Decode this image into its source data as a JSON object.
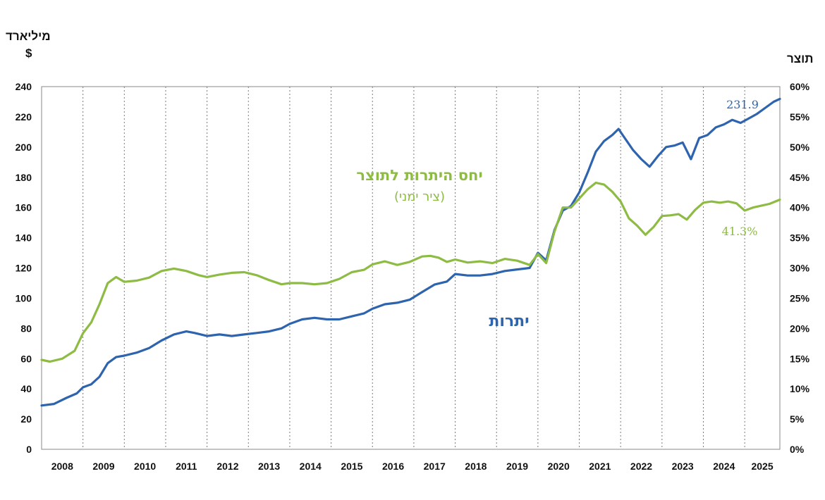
{
  "chart_data": {
    "type": "line",
    "left_axis_unit_line1": "מיליארד",
    "left_axis_unit_line2": "$",
    "right_axis_unit": "תוצר",
    "y_left": {
      "min": 0,
      "max": 240,
      "ticks": [
        0,
        20,
        40,
        60,
        80,
        100,
        120,
        140,
        160,
        180,
        200,
        220,
        240
      ]
    },
    "y_right": {
      "min": 0,
      "max": 60,
      "ticks": [
        "0%",
        "5%",
        "10%",
        "15%",
        "20%",
        "25%",
        "30%",
        "35%",
        "40%",
        "45%",
        "50%",
        "55%",
        "60%"
      ]
    },
    "x": {
      "start": 2008.0,
      "end": 2025.85,
      "year_labels": [
        "2008",
        "2009",
        "2010",
        "2011",
        "2012",
        "2013",
        "2014",
        "2015",
        "2016",
        "2017",
        "2018",
        "2019",
        "2020",
        "2021",
        "2022",
        "2023",
        "2024",
        "2025"
      ]
    },
    "colors": {
      "reserves": "#2e64ae",
      "ratio": "#8dbb43"
    },
    "series": [
      {
        "name": "יתרות",
        "axis": "left",
        "label_value": "231.9",
        "points": [
          [
            2008.0,
            29
          ],
          [
            2008.3,
            30
          ],
          [
            2008.6,
            34
          ],
          [
            2008.85,
            37
          ],
          [
            2009.0,
            41
          ],
          [
            2009.2,
            43
          ],
          [
            2009.4,
            48
          ],
          [
            2009.6,
            57
          ],
          [
            2009.8,
            61
          ],
          [
            2010.0,
            62
          ],
          [
            2010.3,
            64
          ],
          [
            2010.6,
            67
          ],
          [
            2010.9,
            72
          ],
          [
            2011.2,
            76
          ],
          [
            2011.5,
            78
          ],
          [
            2011.7,
            77
          ],
          [
            2012.0,
            75
          ],
          [
            2012.3,
            76
          ],
          [
            2012.6,
            75
          ],
          [
            2012.9,
            76
          ],
          [
            2013.2,
            77
          ],
          [
            2013.5,
            78
          ],
          [
            2013.8,
            80
          ],
          [
            2014.0,
            83
          ],
          [
            2014.3,
            86
          ],
          [
            2014.6,
            87
          ],
          [
            2014.9,
            86
          ],
          [
            2015.2,
            86
          ],
          [
            2015.5,
            88
          ],
          [
            2015.8,
            90
          ],
          [
            2016.0,
            93
          ],
          [
            2016.3,
            96
          ],
          [
            2016.6,
            97
          ],
          [
            2016.9,
            99
          ],
          [
            2017.2,
            104
          ],
          [
            2017.5,
            109
          ],
          [
            2017.8,
            111
          ],
          [
            2018.0,
            116
          ],
          [
            2018.3,
            115
          ],
          [
            2018.6,
            115
          ],
          [
            2018.9,
            116
          ],
          [
            2019.2,
            118
          ],
          [
            2019.5,
            119
          ],
          [
            2019.8,
            120
          ],
          [
            2020.0,
            130
          ],
          [
            2020.2,
            125
          ],
          [
            2020.4,
            145
          ],
          [
            2020.6,
            158
          ],
          [
            2020.8,
            161
          ],
          [
            2021.0,
            170
          ],
          [
            2021.2,
            183
          ],
          [
            2021.4,
            197
          ],
          [
            2021.6,
            204
          ],
          [
            2021.8,
            208
          ],
          [
            2021.95,
            212
          ],
          [
            2022.1,
            206
          ],
          [
            2022.3,
            198
          ],
          [
            2022.5,
            192
          ],
          [
            2022.7,
            187
          ],
          [
            2022.9,
            194
          ],
          [
            2023.1,
            200
          ],
          [
            2023.3,
            201
          ],
          [
            2023.5,
            203
          ],
          [
            2023.7,
            192
          ],
          [
            2023.9,
            206
          ],
          [
            2024.1,
            208
          ],
          [
            2024.3,
            213
          ],
          [
            2024.5,
            215
          ],
          [
            2024.7,
            218
          ],
          [
            2024.9,
            216
          ],
          [
            2025.1,
            219
          ],
          [
            2025.3,
            222
          ],
          [
            2025.5,
            226
          ],
          [
            2025.7,
            230
          ],
          [
            2025.85,
            231.9
          ]
        ]
      },
      {
        "name": "יחס היתרות לתוצר",
        "note": "(ציר ימני)",
        "axis": "right",
        "label_value": "41.3%",
        "points": [
          [
            2008.0,
            14.8
          ],
          [
            2008.2,
            14.5
          ],
          [
            2008.5,
            15.0
          ],
          [
            2008.8,
            16.3
          ],
          [
            2009.0,
            19.2
          ],
          [
            2009.2,
            21
          ],
          [
            2009.4,
            24
          ],
          [
            2009.6,
            27.5
          ],
          [
            2009.8,
            28.5
          ],
          [
            2010.0,
            27.7
          ],
          [
            2010.3,
            27.9
          ],
          [
            2010.6,
            28.4
          ],
          [
            2010.9,
            29.5
          ],
          [
            2011.2,
            29.9
          ],
          [
            2011.5,
            29.5
          ],
          [
            2011.8,
            28.8
          ],
          [
            2012.0,
            28.5
          ],
          [
            2012.3,
            28.9
          ],
          [
            2012.6,
            29.2
          ],
          [
            2012.9,
            29.3
          ],
          [
            2013.2,
            28.8
          ],
          [
            2013.5,
            28.0
          ],
          [
            2013.8,
            27.3
          ],
          [
            2014.0,
            27.5
          ],
          [
            2014.3,
            27.5
          ],
          [
            2014.6,
            27.3
          ],
          [
            2014.9,
            27.5
          ],
          [
            2015.2,
            28.2
          ],
          [
            2015.5,
            29.3
          ],
          [
            2015.8,
            29.7
          ],
          [
            2016.0,
            30.6
          ],
          [
            2016.3,
            31.1
          ],
          [
            2016.6,
            30.5
          ],
          [
            2016.9,
            31.0
          ],
          [
            2017.2,
            31.9
          ],
          [
            2017.4,
            32.0
          ],
          [
            2017.6,
            31.7
          ],
          [
            2017.8,
            31.0
          ],
          [
            2018.0,
            31.4
          ],
          [
            2018.3,
            30.9
          ],
          [
            2018.6,
            31.1
          ],
          [
            2018.9,
            30.8
          ],
          [
            2019.2,
            31.5
          ],
          [
            2019.5,
            31.2
          ],
          [
            2019.8,
            30.5
          ],
          [
            2020.0,
            32.3
          ],
          [
            2020.2,
            30.8
          ],
          [
            2020.4,
            36.0
          ],
          [
            2020.6,
            40.0
          ],
          [
            2020.8,
            40.0
          ],
          [
            2021.0,
            41.5
          ],
          [
            2021.2,
            43.0
          ],
          [
            2021.4,
            44.1
          ],
          [
            2021.6,
            43.8
          ],
          [
            2021.8,
            42.6
          ],
          [
            2022.0,
            41.0
          ],
          [
            2022.2,
            38.2
          ],
          [
            2022.4,
            37.0
          ],
          [
            2022.6,
            35.5
          ],
          [
            2022.8,
            36.8
          ],
          [
            2023.0,
            38.6
          ],
          [
            2023.2,
            38.7
          ],
          [
            2023.4,
            38.9
          ],
          [
            2023.6,
            38.0
          ],
          [
            2023.8,
            39.6
          ],
          [
            2024.0,
            40.8
          ],
          [
            2024.2,
            41.0
          ],
          [
            2024.4,
            40.8
          ],
          [
            2024.6,
            41.0
          ],
          [
            2024.8,
            40.7
          ],
          [
            2025.0,
            39.5
          ],
          [
            2025.2,
            40.0
          ],
          [
            2025.4,
            40.3
          ],
          [
            2025.6,
            40.6
          ],
          [
            2025.85,
            41.3
          ]
        ]
      }
    ],
    "annotations": {
      "ratio_title": "יחס היתרות לתוצר",
      "ratio_subtitle": "(ציר ימני)",
      "reserves_title": "יתרות"
    }
  }
}
